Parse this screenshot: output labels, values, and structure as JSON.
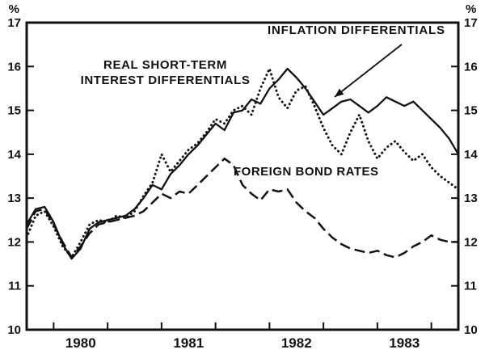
{
  "chart_data": {
    "type": "line",
    "title": "",
    "ylabel_left": "%",
    "ylabel_right": "%",
    "ylim": [
      10,
      17
    ],
    "yticks": [
      10,
      11,
      12,
      13,
      14,
      15,
      16,
      17
    ],
    "xlim": [
      1980.0,
      1984.0
    ],
    "xticks": [
      1980.25,
      1980.75,
      1981.25,
      1981.75,
      1982.25,
      1982.75,
      1983.25,
      1983.75
    ],
    "xtick_labels": [
      "1980",
      "1981",
      "1982",
      "1983"
    ],
    "xtick_label_positions": [
      1980.5,
      1981.5,
      1982.5,
      1983.5
    ],
    "x_start": 1980.0,
    "x_step": 0.0833333,
    "grid": false,
    "legend_position": "annotations-inline",
    "series": [
      {
        "name": "INFLATION DIFFERENTIALS",
        "style": "solid",
        "values": [
          12.4,
          12.75,
          12.8,
          12.45,
          11.95,
          11.62,
          11.85,
          12.3,
          12.45,
          12.5,
          12.55,
          12.6,
          12.75,
          13.0,
          13.3,
          13.2,
          13.55,
          13.75,
          14.0,
          14.2,
          14.45,
          14.7,
          14.55,
          14.95,
          15.0,
          15.25,
          15.15,
          15.5,
          15.7,
          15.95,
          15.75,
          15.5,
          15.2,
          14.9,
          15.05,
          15.2,
          15.25,
          15.1,
          14.95,
          15.1,
          15.3,
          15.2,
          15.1,
          15.2,
          15.0,
          14.8,
          14.6,
          14.35,
          14.0
        ]
      },
      {
        "name": "REAL SHORT-TERM INTEREST DIFFERENTIALS",
        "style": "dotted",
        "values": [
          12.1,
          12.6,
          12.7,
          12.35,
          11.9,
          11.65,
          12.0,
          12.4,
          12.5,
          12.45,
          12.6,
          12.55,
          12.7,
          13.05,
          13.35,
          14.0,
          13.6,
          13.85,
          14.1,
          14.25,
          14.5,
          14.8,
          14.7,
          15.0,
          15.1,
          14.9,
          15.5,
          15.95,
          15.3,
          15.05,
          15.45,
          15.55,
          15.1,
          14.6,
          14.2,
          14.0,
          14.5,
          14.9,
          14.3,
          13.9,
          14.15,
          14.3,
          14.05,
          13.85,
          14.0,
          13.7,
          13.5,
          13.35,
          13.2
        ]
      },
      {
        "name": "FOREIGN BOND RATES",
        "style": "dashed",
        "values": [
          12.3,
          12.7,
          12.75,
          12.4,
          12.0,
          11.65,
          11.9,
          12.2,
          12.4,
          12.45,
          12.5,
          12.55,
          12.6,
          12.7,
          12.9,
          13.1,
          13.0,
          13.15,
          13.1,
          13.3,
          13.5,
          13.7,
          13.9,
          13.75,
          13.3,
          13.1,
          12.95,
          13.2,
          13.15,
          13.2,
          12.9,
          12.7,
          12.55,
          12.3,
          12.1,
          11.95,
          11.85,
          11.8,
          11.75,
          11.8,
          11.7,
          11.65,
          11.75,
          11.9,
          12.0,
          12.15,
          12.05,
          12.0,
          12.0
        ]
      }
    ],
    "annotations": {
      "inflation": "INFLATION DIFFERENTIALS",
      "real_line1": "REAL SHORT-TERM",
      "real_line2": "INTEREST DIFFERENTIALS",
      "foreign": "FOREIGN BOND RATES"
    },
    "colors": {
      "line": "#111111",
      "background": "#ffffff"
    }
  }
}
